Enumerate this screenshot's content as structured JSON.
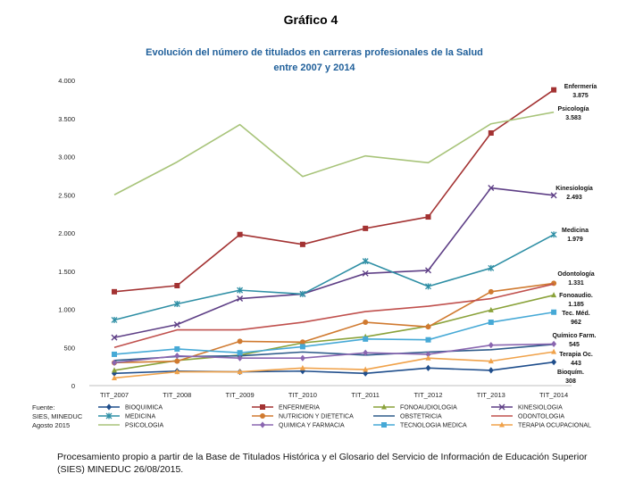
{
  "heading": {
    "figure": "Gráfico 4",
    "title": "Evolución del número de titulados en carreras profesionales de la Salud",
    "subtitle": "entre 2007 y  2014"
  },
  "source": {
    "line1": "Fuente:",
    "line2": "SIES, MINEDUC",
    "line3": "Agosto 2015"
  },
  "footnote": "Procesamiento propio a partir de la Base de Titulados Histórica y el Glosario del Servicio de Información de Educación Superior (SIES) MINEDUC 26/08/2015.",
  "chart_data": {
    "type": "line",
    "title": "Evolución del número de titulados en carreras profesionales de la Salud",
    "subtitle": "entre 2007 y  2014",
    "categories": [
      "TIT_2007",
      "TIT_2008",
      "TIT_2009",
      "TIT_2010",
      "TIT_2011",
      "TIT_2012",
      "TIT_2013",
      "TIT_2014"
    ],
    "ylim": [
      0,
      4000
    ],
    "yticks": [
      0,
      500,
      1000,
      1500,
      2000,
      2500,
      3000,
      3500,
      4000
    ],
    "ytick_labels": [
      "0",
      "500",
      "1.000",
      "1.500",
      "2.000",
      "2.500",
      "3.000",
      "3.500",
      "4.000"
    ],
    "grid": false,
    "legend_position": "bottom",
    "series": [
      {
        "name": "BIOQUIMICA",
        "color": "#1f4e8c",
        "marker": "diamond",
        "values": [
          160,
          190,
          180,
          190,
          160,
          230,
          200,
          308
        ],
        "label": "Bioquím.",
        "value_label": "308"
      },
      {
        "name": "ENFERMERIA",
        "color": "#a33232",
        "marker": "square",
        "values": [
          1230,
          1310,
          1980,
          1850,
          2060,
          2210,
          3310,
          3875
        ],
        "label": "Enfermería",
        "value_label": "3.875"
      },
      {
        "name": "FONOAUDIOLOGIA",
        "color": "#8aa23a",
        "marker": "triangle",
        "values": [
          200,
          330,
          400,
          560,
          640,
          780,
          990,
          1185
        ],
        "label": "Fonoaudio.",
        "value_label": "1.185"
      },
      {
        "name": "KINESIOLOGIA",
        "color": "#5e3f86",
        "marker": "x",
        "values": [
          630,
          800,
          1140,
          1200,
          1470,
          1510,
          2590,
          2493
        ],
        "label": "Kinesiología",
        "value_label": "2.493"
      },
      {
        "name": "MEDICINA",
        "color": "#2f8fa5",
        "marker": "star",
        "values": [
          860,
          1070,
          1250,
          1200,
          1630,
          1300,
          1540,
          1979
        ],
        "label": "Medicina",
        "value_label": "1.979"
      },
      {
        "name": "NUTRICION Y DIETETICA",
        "color": "#d07a30",
        "marker": "circle",
        "values": [
          300,
          320,
          580,
          570,
          830,
          770,
          1230,
          1340
        ],
        "label": "",
        "value_label": ""
      },
      {
        "name": "OBSTETRICIA",
        "color": "#2e5b8a",
        "marker": "none",
        "values": [
          330,
          380,
          390,
          440,
          400,
          440,
          470,
          540
        ],
        "label": "",
        "value_label": ""
      },
      {
        "name": "ODONTOLOGIA",
        "color": "#c0504d",
        "marker": "none",
        "values": [
          500,
          730,
          730,
          830,
          970,
          1040,
          1140,
          1331
        ],
        "label": "Odontología",
        "value_label": "1.331"
      },
      {
        "name": "PSICOLOGIA",
        "color": "#a8c47a",
        "marker": "none",
        "values": [
          2500,
          2930,
          3420,
          2740,
          3010,
          2920,
          3430,
          3583
        ],
        "label": "Psicología",
        "value_label": "3.583"
      },
      {
        "name": "QUIMICA Y FARMACIA",
        "color": "#8a66b0",
        "marker": "diamond",
        "values": [
          300,
          390,
          360,
          360,
          430,
          410,
          530,
          545
        ],
        "label": "Químico Farm.",
        "value_label": "545"
      },
      {
        "name": "TECNOLOGIA MEDICA",
        "color": "#46a9d6",
        "marker": "square",
        "values": [
          410,
          480,
          430,
          510,
          610,
          600,
          830,
          962
        ],
        "label": "Tec. Méd.",
        "value_label": "962"
      },
      {
        "name": "TERAPIA OCUPACIONAL",
        "color": "#f0a24a",
        "marker": "triangle",
        "values": [
          100,
          180,
          180,
          230,
          210,
          360,
          320,
          443
        ],
        "label": "Terapia Oc.",
        "value_label": "443"
      }
    ]
  }
}
